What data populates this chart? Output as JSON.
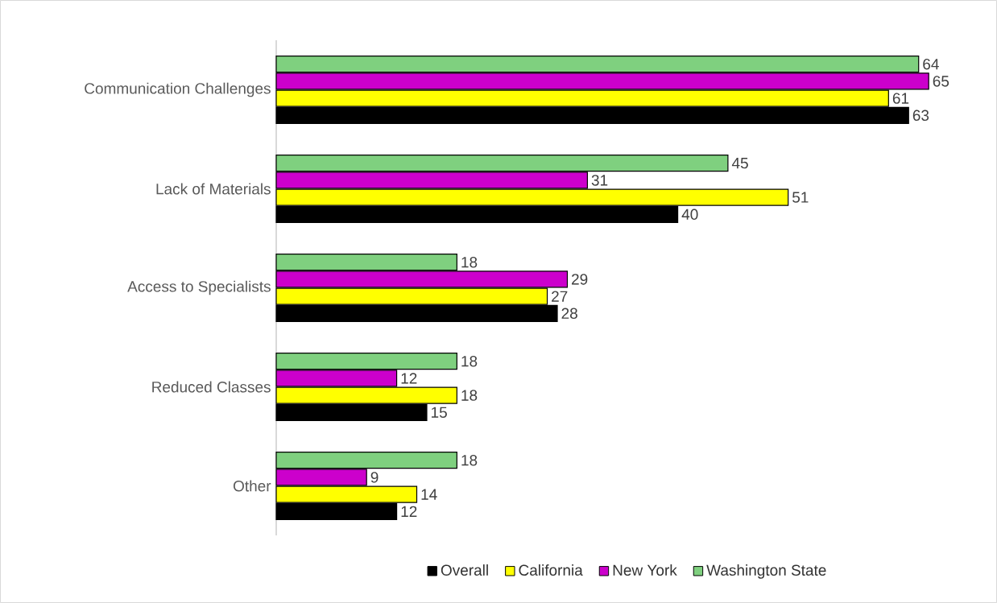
{
  "chart_data": {
    "type": "bar",
    "orientation": "horizontal",
    "categories": [
      "Communication Challenges",
      "Lack of Materials",
      "Access to Specialists",
      "Reduced Classes",
      "Other"
    ],
    "series": [
      {
        "name": "Overall",
        "color": "#000000",
        "values": [
          63,
          40,
          28,
          15,
          12
        ]
      },
      {
        "name": "California",
        "color": "#ffff00",
        "values": [
          61,
          51,
          27,
          18,
          14
        ]
      },
      {
        "name": "New York",
        "color": "#cc00cc",
        "values": [
          65,
          31,
          29,
          12,
          9
        ]
      },
      {
        "name": "Washington State",
        "color": "#7fd07f",
        "values": [
          64,
          45,
          18,
          18,
          18
        ]
      }
    ],
    "data_labels": true,
    "legend": "bottom"
  }
}
